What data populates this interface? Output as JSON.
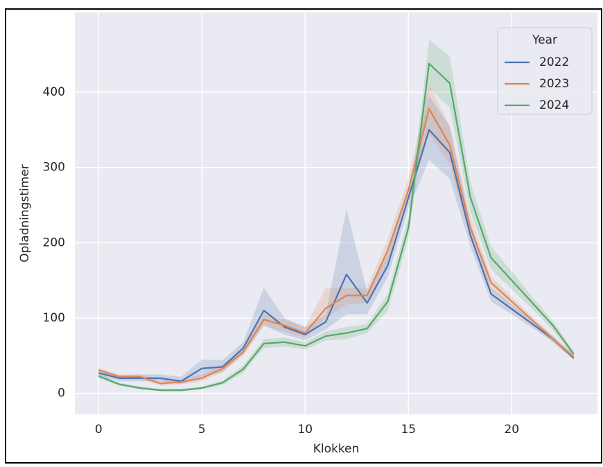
{
  "chart_data": {
    "type": "line",
    "xlabel": "Klokken",
    "ylabel": "Opladningstimer",
    "x": [
      0,
      1,
      2,
      3,
      4,
      5,
      6,
      7,
      8,
      9,
      10,
      11,
      12,
      13,
      14,
      15,
      16,
      17,
      18,
      19,
      20,
      21,
      22,
      23
    ],
    "series": [
      {
        "name": "2022",
        "color": "#4c72b0",
        "values": [
          27,
          20,
          20,
          20,
          16,
          33,
          35,
          60,
          110,
          88,
          78,
          95,
          158,
          120,
          170,
          260,
          350,
          320,
          210,
          132,
          112,
          92,
          72,
          47
        ],
        "lower": [
          24,
          16,
          16,
          16,
          12,
          22,
          28,
          52,
          90,
          78,
          70,
          85,
          105,
          105,
          155,
          245,
          310,
          285,
          195,
          122,
          105,
          87,
          68,
          44
        ],
        "upper": [
          30,
          24,
          25,
          25,
          22,
          45,
          44,
          68,
          140,
          100,
          88,
          105,
          245,
          135,
          185,
          275,
          395,
          355,
          225,
          140,
          118,
          97,
          76,
          50
        ]
      },
      {
        "name": "2023",
        "color": "#dd8452",
        "values": [
          31,
          22,
          22,
          13,
          15,
          20,
          33,
          55,
          98,
          90,
          80,
          113,
          130,
          130,
          190,
          270,
          378,
          330,
          220,
          147,
          122,
          97,
          72,
          48
        ],
        "lower": [
          28,
          19,
          19,
          10,
          12,
          16,
          28,
          50,
          90,
          82,
          74,
          100,
          118,
          120,
          175,
          255,
          345,
          305,
          205,
          138,
          115,
          92,
          68,
          45
        ],
        "upper": [
          34,
          25,
          25,
          17,
          18,
          25,
          38,
          60,
          105,
          98,
          88,
          140,
          140,
          140,
          205,
          285,
          410,
          355,
          235,
          155,
          128,
          102,
          76,
          52
        ]
      },
      {
        "name": "2024",
        "color": "#55a868",
        "values": [
          23,
          12,
          7,
          4,
          4,
          7,
          14,
          32,
          66,
          68,
          63,
          76,
          80,
          86,
          122,
          220,
          438,
          412,
          260,
          180,
          150,
          120,
          90,
          52
        ],
        "lower": [
          20,
          10,
          5,
          3,
          3,
          5,
          11,
          27,
          60,
          62,
          58,
          70,
          72,
          80,
          110,
          205,
          405,
          380,
          240,
          165,
          138,
          112,
          84,
          48
        ],
        "upper": [
          26,
          14,
          9,
          6,
          6,
          9,
          17,
          37,
          72,
          74,
          68,
          82,
          88,
          92,
          132,
          235,
          470,
          448,
          280,
          195,
          162,
          128,
          96,
          56
        ]
      }
    ],
    "legend_title": "Year",
    "legend": "upper right",
    "grid": true,
    "xlim": [
      -1.15,
      24.15
    ],
    "xticks": [
      0,
      5,
      10,
      15,
      20
    ],
    "ylim": [
      -28,
      506
    ],
    "yticks": [
      0,
      100,
      200,
      300,
      400
    ]
  }
}
